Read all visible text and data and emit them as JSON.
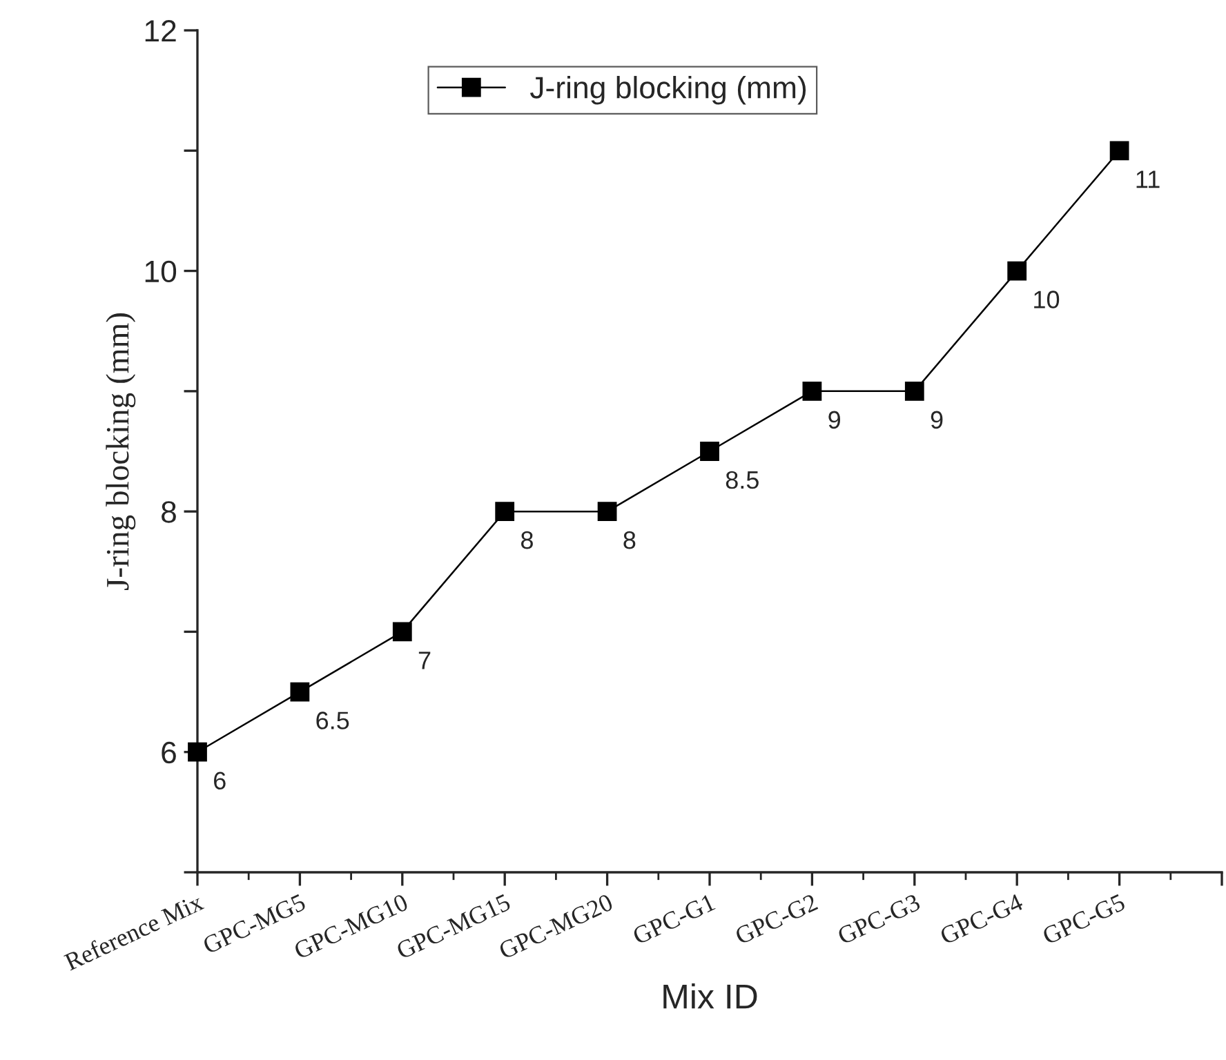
{
  "chart_data": {
    "type": "line",
    "xlabel": "Mix ID",
    "ylabel": "J-ring blocking (mm)",
    "categories": [
      "Reference Mix",
      "GPC-MG5",
      "GPC-MG10",
      "GPC-MG15",
      "GPC-MG20",
      "GPC-G1",
      "GPC-G2",
      "GPC-G3",
      "GPC-G4",
      "GPC-G5",
      null
    ],
    "series": [
      {
        "name": "J-ring blocking (mm)",
        "color": "#000000",
        "values": [
          6,
          6.5,
          7,
          8,
          8,
          8.5,
          9,
          9,
          10,
          11,
          null
        ]
      }
    ],
    "ylim": [
      5,
      12
    ],
    "yticks": [
      {
        "value": 5,
        "label": null
      },
      6,
      {
        "value": 7,
        "label": null
      },
      8,
      {
        "value": 9,
        "label": null
      },
      10,
      {
        "value": 11,
        "label": null
      },
      12
    ],
    "marker": "square",
    "line_style": "solid",
    "legend": "top",
    "grid": false,
    "data_labels": true
  }
}
